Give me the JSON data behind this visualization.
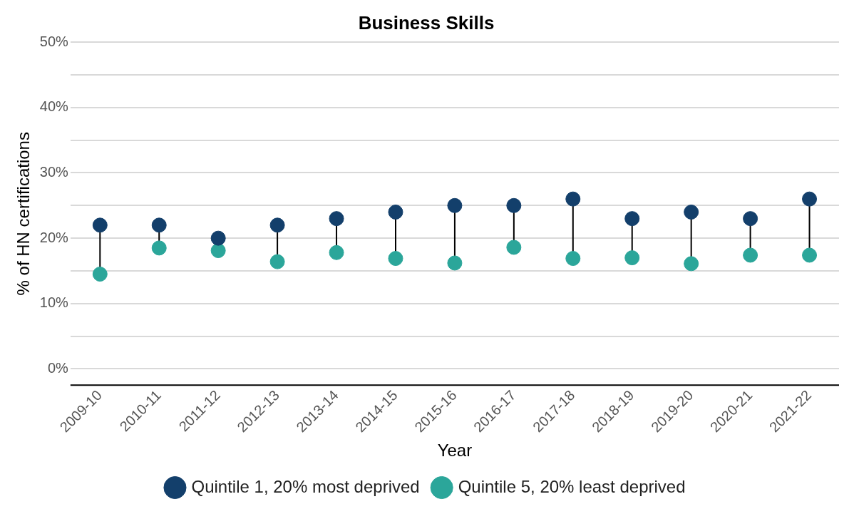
{
  "chart_data": {
    "type": "scatter",
    "title": "Business Skills",
    "xlabel": "Year",
    "ylabel": "% of HN certifications",
    "categories": [
      "2009-10",
      "2010-11",
      "2011-12",
      "2012-13",
      "2013-14",
      "2014-15",
      "2015-16",
      "2016-17",
      "2017-18",
      "2018-19",
      "2019-20",
      "2020-21",
      "2021-22"
    ],
    "series": [
      {
        "name": "Quintile 1, 20% most deprived",
        "color": "#133f6b",
        "values": [
          22,
          22,
          20,
          22,
          23,
          24,
          25,
          25,
          26,
          23,
          24,
          23,
          26
        ]
      },
      {
        "name": "Quintile 5, 20% least deprived",
        "color": "#2ba69a",
        "values": [
          14.5,
          18.5,
          18.1,
          16.4,
          17.8,
          16.9,
          16.2,
          18.6,
          16.9,
          17.0,
          16.1,
          17.4,
          17.4
        ]
      }
    ],
    "ylim": [
      -2.5,
      50
    ],
    "yticks": [
      {
        "value": 0,
        "label": "0%"
      },
      {
        "value": 5,
        "label": null
      },
      {
        "value": 10,
        "label": "10%"
      },
      {
        "value": 15,
        "label": null
      },
      {
        "value": 20,
        "label": "20%"
      },
      {
        "value": 25,
        "label": null
      },
      {
        "value": 30,
        "label": "30%"
      },
      {
        "value": 35,
        "label": null
      },
      {
        "value": 40,
        "label": "40%"
      },
      {
        "value": 45,
        "label": null
      },
      {
        "value": 50,
        "label": "50%"
      }
    ],
    "grid": "y",
    "legend": "bottom",
    "marker": "circle"
  }
}
